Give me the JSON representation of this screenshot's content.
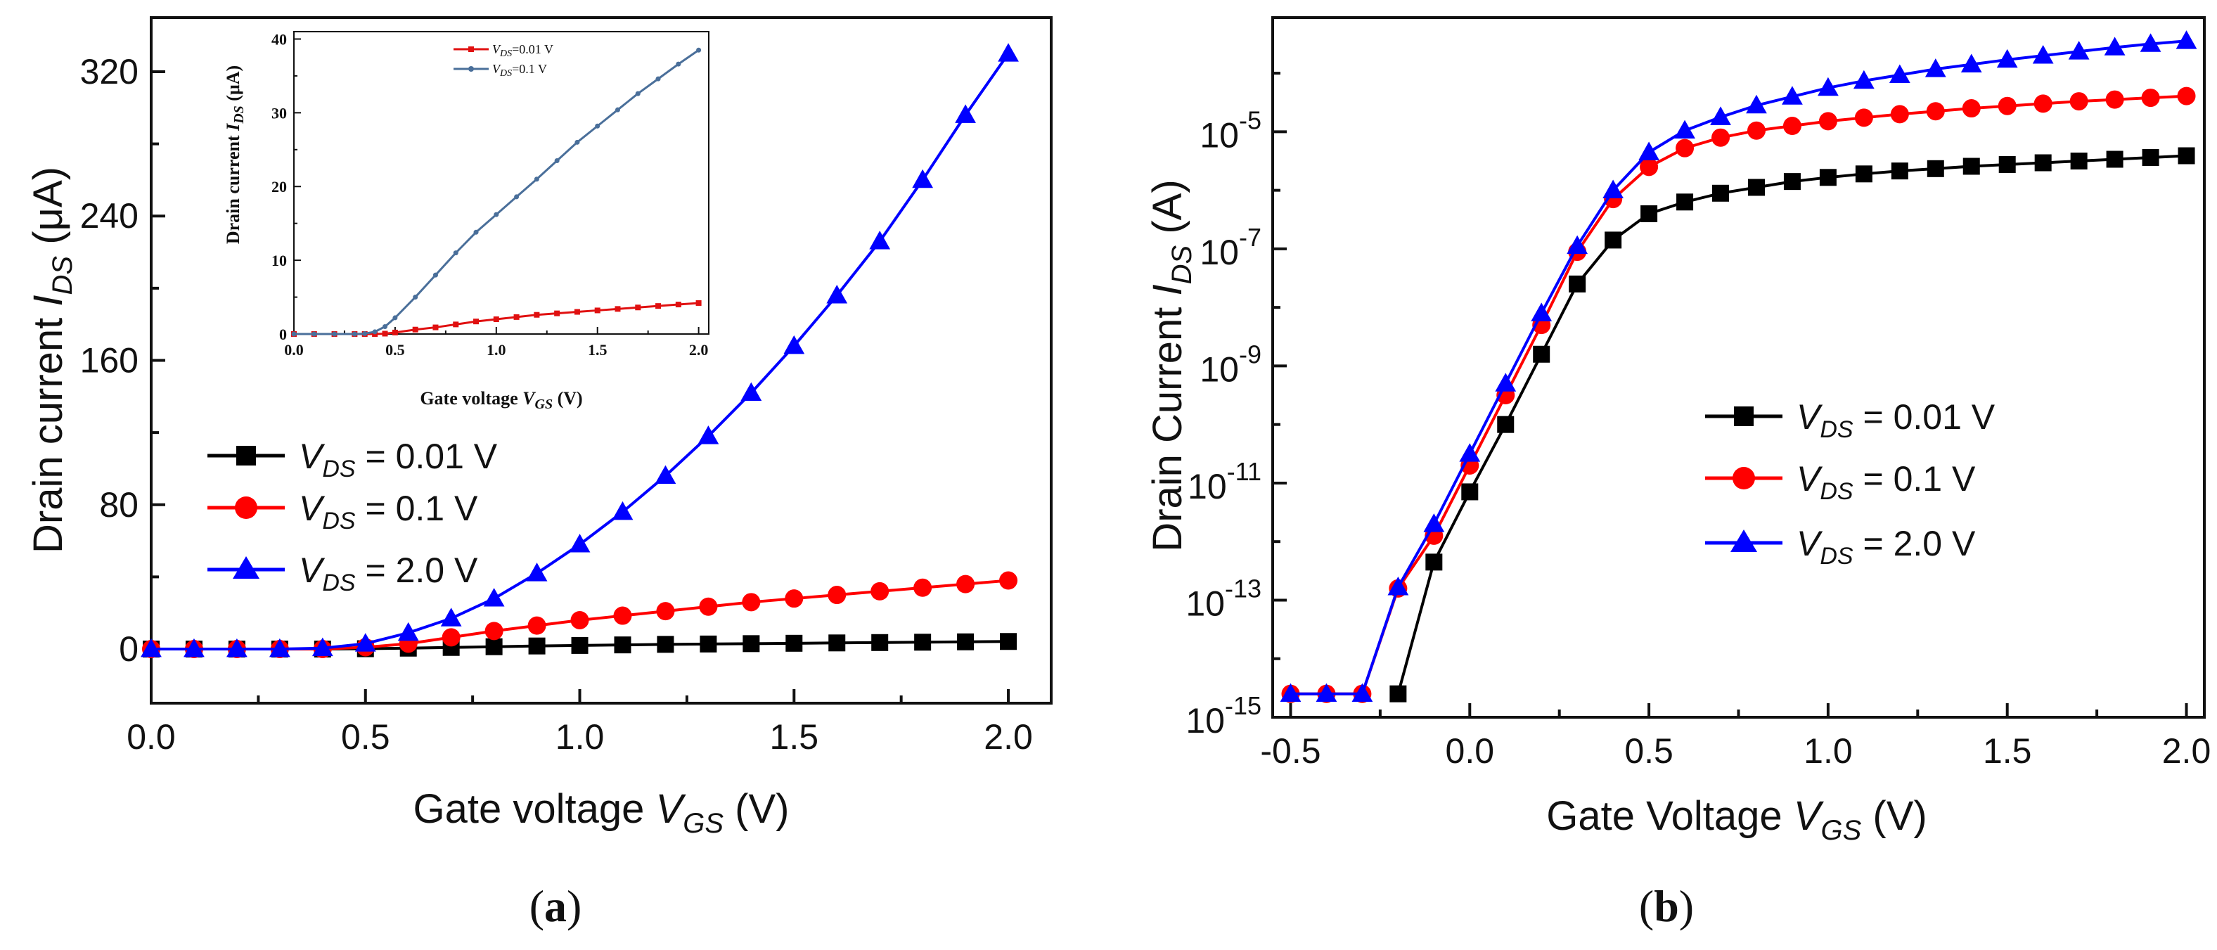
{
  "chart_data": [
    {
      "id": "a",
      "type": "line",
      "caption": "(a)",
      "caption_letter": "a",
      "xlabel": "Gate voltage V_GS (V)",
      "xlabel_prefix": "Gate voltage ",
      "xlabel_var": "V",
      "xlabel_sub": "GS",
      "xlabel_suffix": " (V)",
      "ylabel": "Drain current I_DS (μA)",
      "ylabel_prefix": "Drain current ",
      "ylabel_var": "I",
      "ylabel_sub": "DS",
      "ylabel_suffix": " (μA)",
      "xlim": [
        0.0,
        2.1
      ],
      "ylim": [
        -30,
        350
      ],
      "xticks": [
        "0.0",
        "0.5",
        "1.0",
        "1.5",
        "2.0"
      ],
      "yticks": [
        "0",
        "80",
        "160",
        "240",
        "320"
      ],
      "x": [
        0.0,
        0.1,
        0.2,
        0.3,
        0.4,
        0.5,
        0.6,
        0.7,
        0.8,
        0.9,
        1.0,
        1.1,
        1.2,
        1.3,
        1.4,
        1.5,
        1.6,
        1.7,
        1.8,
        1.9,
        2.0
      ],
      "series": [
        {
          "name": "V_DS = 0.01 V",
          "var": "V",
          "sub": "DS",
          "rest": " = 0.01 V",
          "color": "#000000",
          "marker": "square",
          "values": [
            0,
            0,
            0,
            0,
            0,
            0.2,
            0.5,
            0.9,
            1.3,
            1.7,
            2.0,
            2.3,
            2.6,
            2.8,
            3.0,
            3.2,
            3.4,
            3.6,
            3.8,
            4.0,
            4.2
          ]
        },
        {
          "name": "V_DS = 0.1 V",
          "var": "V",
          "sub": "DS",
          "rest": " = 0.1 V",
          "color": "#ff0000",
          "marker": "circle",
          "values": [
            0,
            0,
            0,
            0,
            0,
            1.0,
            3.0,
            6.5,
            10,
            13,
            16,
            18.5,
            21,
            23.5,
            26,
            28,
            30,
            32,
            34,
            36,
            38
          ]
        },
        {
          "name": "V_DS = 2.0 V",
          "var": "V",
          "sub": "DS",
          "rest": " = 2.0 V",
          "color": "#0000ff",
          "marker": "triangle",
          "values": [
            0,
            0,
            0,
            0,
            0.5,
            3,
            9,
            17,
            28,
            42,
            58,
            76,
            96,
            118,
            142,
            168,
            196,
            226,
            260,
            296,
            330
          ]
        }
      ],
      "inset": {
        "type": "line",
        "xlabel": "Gate voltage V_GS (V)",
        "xlabel_prefix": "Gate voltage ",
        "xlabel_var": "V",
        "xlabel_sub": "GS",
        "xlabel_suffix": " (V)",
        "ylabel": "Drain current I_DS (μA)",
        "ylabel_prefix": "Drain current ",
        "ylabel_var": "I",
        "ylabel_sub": "DS",
        "ylabel_suffix": " (μA)",
        "xlim": [
          0.0,
          2.05
        ],
        "ylim": [
          0,
          41
        ],
        "xticks": [
          "0.0",
          "0.5",
          "1.0",
          "1.5",
          "2.0"
        ],
        "yticks": [
          "0",
          "10",
          "20",
          "30",
          "40"
        ],
        "x": [
          0.0,
          0.1,
          0.2,
          0.3,
          0.35,
          0.4,
          0.45,
          0.5,
          0.6,
          0.7,
          0.8,
          0.9,
          1.0,
          1.1,
          1.2,
          1.3,
          1.4,
          1.5,
          1.6,
          1.7,
          1.8,
          1.9,
          2.0
        ],
        "series": [
          {
            "name": "V_DS=0.01 V",
            "var": "V",
            "sub": "DS",
            "rest": "=0.01 V",
            "color": "#e01010",
            "values": [
              0,
              0,
              0,
              0,
              0,
              0,
              0.05,
              0.2,
              0.6,
              0.9,
              1.3,
              1.7,
              2.0,
              2.3,
              2.6,
              2.8,
              3.0,
              3.2,
              3.4,
              3.6,
              3.8,
              4.0,
              4.2
            ]
          },
          {
            "name": "V_DS=0.1 V",
            "var": "V",
            "sub": "DS",
            "rest": "=0.1 V",
            "color": "#4a6f9a",
            "values": [
              0,
              0,
              0,
              0,
              0.05,
              0.3,
              1.0,
              2.2,
              5.0,
              8.0,
              11.0,
              13.8,
              16.2,
              18.6,
              21.0,
              23.5,
              26.0,
              28.2,
              30.4,
              32.6,
              34.6,
              36.6,
              38.5
            ]
          }
        ]
      }
    },
    {
      "id": "b",
      "type": "line",
      "yscale": "log",
      "caption": "(b)",
      "caption_letter": "b",
      "xlabel": "Gate Voltage V_GS (V)",
      "xlabel_prefix": "Gate Voltage ",
      "xlabel_var": "V",
      "xlabel_sub": "GS",
      "xlabel_suffix": " (V)",
      "ylabel": "Drain Current I_DS (A)",
      "ylabel_prefix": "Drain Current ",
      "ylabel_var": "I",
      "ylabel_sub": "DS",
      "ylabel_suffix": " (A)",
      "xlim": [
        -0.55,
        2.05
      ],
      "ylim_log10": [
        -15,
        -3.05
      ],
      "xticks": [
        "-0.5",
        "0.0",
        "0.5",
        "1.0",
        "1.5",
        "2.0"
      ],
      "yticks": [
        {
          "base": "10",
          "exp": "-15"
        },
        {
          "base": "10",
          "exp": "-13"
        },
        {
          "base": "10",
          "exp": "-11"
        },
        {
          "base": "10",
          "exp": "-9"
        },
        {
          "base": "10",
          "exp": "-7"
        },
        {
          "base": "10",
          "exp": "-5"
        }
      ],
      "x": [
        -0.5,
        -0.4,
        -0.3,
        -0.2,
        -0.1,
        0.0,
        0.1,
        0.2,
        0.3,
        0.4,
        0.5,
        0.6,
        0.7,
        0.8,
        0.9,
        1.0,
        1.1,
        1.2,
        1.3,
        1.4,
        1.5,
        1.6,
        1.7,
        1.8,
        1.9,
        2.0
      ],
      "series": [
        {
          "name": "V_DS = 0.01 V",
          "var": "V",
          "sub": "DS",
          "rest": " = 0.01 V",
          "color": "#000000",
          "marker": "square",
          "log10_values": [
            null,
            null,
            null,
            -14.6,
            -12.35,
            -11.15,
            -10.0,
            -8.8,
            -7.6,
            -6.85,
            -6.4,
            -6.2,
            -6.05,
            -5.95,
            -5.85,
            -5.78,
            -5.72,
            -5.67,
            -5.63,
            -5.59,
            -5.56,
            -5.53,
            -5.5,
            -5.47,
            -5.44,
            -5.41
          ]
        },
        {
          "name": "V_DS = 0.1 V",
          "var": "V",
          "sub": "DS",
          "rest": " = 0.1 V",
          "color": "#ff0000",
          "marker": "circle",
          "log10_values": [
            -14.6,
            -14.6,
            -14.6,
            -12.8,
            -11.9,
            -10.7,
            -9.5,
            -8.3,
            -7.05,
            -6.15,
            -5.6,
            -5.28,
            -5.1,
            -4.98,
            -4.9,
            -4.82,
            -4.76,
            -4.7,
            -4.65,
            -4.6,
            -4.56,
            -4.52,
            -4.48,
            -4.45,
            -4.42,
            -4.39
          ]
        },
        {
          "name": "V_DS = 2.0 V",
          "var": "V",
          "sub": "DS",
          "rest": " = 2.0 V",
          "color": "#0000ff",
          "marker": "triangle",
          "log10_values": [
            -14.6,
            -14.6,
            -14.6,
            -12.78,
            -11.7,
            -10.5,
            -9.3,
            -8.1,
            -6.95,
            -6.0,
            -5.35,
            -4.98,
            -4.75,
            -4.55,
            -4.4,
            -4.25,
            -4.13,
            -4.03,
            -3.93,
            -3.85,
            -3.77,
            -3.7,
            -3.63,
            -3.56,
            -3.5,
            -3.45
          ]
        }
      ]
    }
  ]
}
